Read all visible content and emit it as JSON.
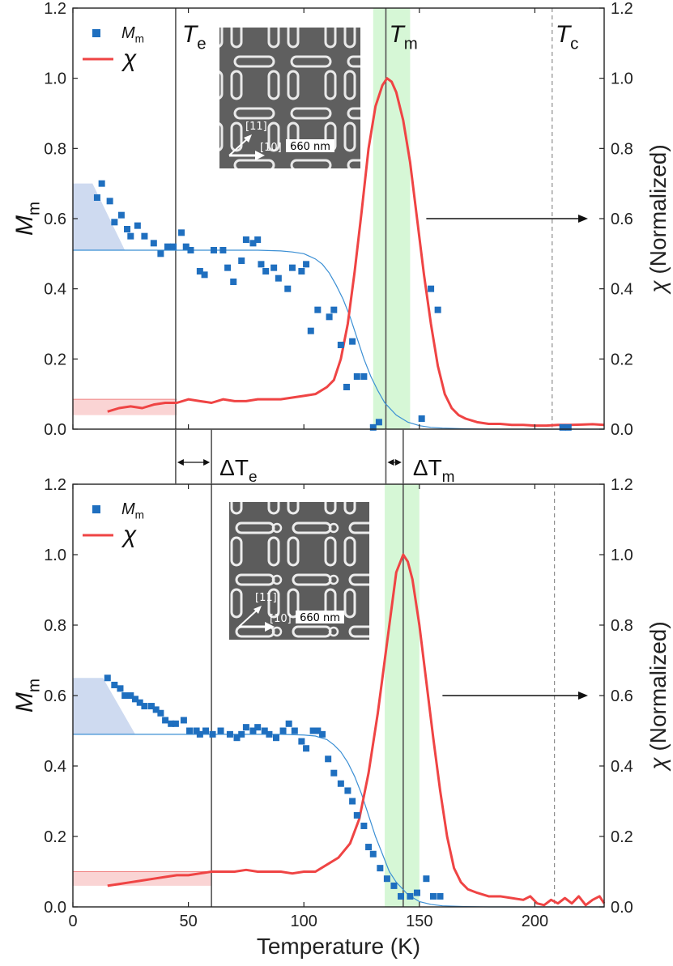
{
  "chart_data": [
    {
      "type": "scatter",
      "panel": "top",
      "xlim": [
        0,
        230
      ],
      "ylim": [
        0,
        1.2
      ],
      "y2lim": [
        0,
        1.2
      ],
      "xticks": [
        0,
        50,
        100,
        150,
        200
      ],
      "yticks": [
        "0.0",
        "0.2",
        "0.4",
        "0.6",
        "0.8",
        "1.0",
        "1.2"
      ],
      "ylabel_main": "M",
      "ylabel_sub": "m",
      "y2label_greek": "χ",
      "y2label_text": "(Normalized)",
      "legend": {
        "marker_label_main": "M",
        "marker_label_sub": "m",
        "line_label": "χ"
      },
      "markers": [
        {
          "main": "T",
          "sub": "e",
          "x": 44.5
        },
        {
          "main": "T",
          "sub": "m",
          "x": 135.5
        },
        {
          "main": "T",
          "sub": "c",
          "x": 207.5
        }
      ],
      "green_band": [
        130,
        146
      ],
      "inset_scale": "660 nm",
      "inset_dir1": "[11]",
      "inset_dir2": "[10]",
      "series": [
        {
          "name": "M_m",
          "kind": "scatter",
          "color": "#1f6fbf",
          "x": [
            10.5,
            12.5,
            16,
            18,
            21,
            23.5,
            25,
            28,
            31,
            35,
            38,
            41,
            43.5,
            47,
            49,
            51,
            55,
            57,
            61,
            65,
            67,
            69.5,
            73,
            75,
            78,
            80,
            81.5,
            83.5,
            87,
            89,
            93,
            95,
            99,
            101,
            103,
            106,
            111,
            113,
            116,
            118.5,
            121,
            123,
            126,
            130,
            132.5,
            151,
            155,
            158,
            212,
            214.5
          ],
          "y": [
            0.66,
            0.7,
            0.65,
            0.59,
            0.61,
            0.57,
            0.55,
            0.58,
            0.55,
            0.53,
            0.5,
            0.52,
            0.52,
            0.56,
            0.52,
            0.51,
            0.45,
            0.44,
            0.51,
            0.51,
            0.46,
            0.42,
            0.48,
            0.54,
            0.53,
            0.54,
            0.47,
            0.45,
            0.46,
            0.43,
            0.4,
            0.46,
            0.45,
            0.47,
            0.28,
            0.34,
            0.32,
            0.34,
            0.24,
            0.12,
            0.25,
            0.15,
            0.15,
            0.005,
            0.02,
            0.03,
            0.4,
            0.34,
            0.005,
            0.005
          ]
        },
        {
          "name": "χ",
          "kind": "line",
          "color": "#ef4444",
          "x": [
            15,
            20,
            25,
            30,
            35,
            40,
            45,
            50,
            55,
            60,
            65,
            70,
            75,
            80,
            85,
            90,
            95,
            100,
            105,
            110,
            113,
            116,
            119,
            122,
            125,
            128,
            131,
            134,
            136,
            138,
            140,
            143,
            146,
            149,
            152,
            155,
            158,
            161,
            164,
            167,
            170,
            175,
            180,
            185,
            190,
            195,
            200,
            205,
            210,
            215,
            220,
            225,
            230
          ],
          "y": [
            0.05,
            0.06,
            0.065,
            0.06,
            0.07,
            0.075,
            0.075,
            0.085,
            0.08,
            0.075,
            0.085,
            0.08,
            0.08,
            0.085,
            0.085,
            0.085,
            0.09,
            0.095,
            0.1,
            0.12,
            0.14,
            0.2,
            0.3,
            0.45,
            0.62,
            0.8,
            0.92,
            0.98,
            1.0,
            0.99,
            0.96,
            0.88,
            0.76,
            0.6,
            0.44,
            0.3,
            0.18,
            0.1,
            0.06,
            0.04,
            0.03,
            0.02,
            0.015,
            0.015,
            0.012,
            0.012,
            0.01,
            0.01,
            0.012,
            0.012,
            0.013,
            0.014,
            0.012
          ]
        },
        {
          "name": "fit",
          "kind": "line",
          "color": "#3b8fd4",
          "x": [
            0,
            10,
            20,
            30,
            40,
            50,
            60,
            70,
            80,
            90,
            95,
            100,
            105,
            108,
            111,
            114,
            117,
            120,
            123,
            126,
            129,
            132,
            135,
            140,
            145,
            150,
            155,
            160,
            170,
            180,
            200,
            230
          ],
          "y": [
            0.51,
            0.51,
            0.51,
            0.51,
            0.51,
            0.51,
            0.51,
            0.51,
            0.51,
            0.508,
            0.505,
            0.5,
            0.485,
            0.47,
            0.445,
            0.41,
            0.37,
            0.32,
            0.26,
            0.2,
            0.15,
            0.11,
            0.075,
            0.04,
            0.02,
            0.01,
            0.005,
            0.003,
            0.001,
            0,
            0,
            0
          ]
        }
      ],
      "shade_blue_top": 0.7,
      "shade_base": 0.51,
      "shade_red_top": 0.085,
      "shade_red_base": 0.04
    },
    {
      "type": "scatter",
      "panel": "bottom",
      "xlim": [
        0,
        230
      ],
      "ylim": [
        0,
        1.2
      ],
      "y2lim": [
        0,
        1.2
      ],
      "xticks": [
        "0",
        "50",
        "100",
        "150",
        "200"
      ],
      "yticks": [
        "0.0",
        "0.2",
        "0.4",
        "0.6",
        "0.8",
        "1.0",
        "1.2"
      ],
      "xlabel": "Temperature (K)",
      "ylabel_main": "M",
      "ylabel_sub": "m",
      "y2label_greek": "χ",
      "y2label_text": "(Normalized)",
      "legend": {
        "marker_label_main": "M",
        "marker_label_sub": "m",
        "line_label": "χ"
      },
      "vlines": [
        60,
        143,
        208.5
      ],
      "green_band": [
        135,
        150
      ],
      "inset_scale": "660 nm",
      "inset_dir1": "[11]",
      "inset_dir2": "[10]",
      "series": [
        {
          "name": "M_m",
          "kind": "scatter",
          "color": "#1f6fbf",
          "x": [
            15,
            18,
            20.5,
            22.5,
            25,
            27,
            29,
            31,
            34,
            36,
            38,
            40,
            42.5,
            44.5,
            48,
            50.5,
            53.5,
            55,
            57.5,
            60.5,
            64,
            68,
            71,
            73,
            75,
            78,
            80,
            83,
            85,
            88,
            91,
            93.5,
            96,
            99,
            101,
            104,
            106,
            108,
            110.5,
            113,
            116,
            119,
            121,
            123,
            126,
            128,
            130,
            133,
            136,
            139,
            142,
            146,
            149,
            153,
            156,
            159
          ],
          "y": [
            0.65,
            0.63,
            0.62,
            0.6,
            0.6,
            0.59,
            0.58,
            0.57,
            0.57,
            0.56,
            0.55,
            0.53,
            0.52,
            0.52,
            0.53,
            0.5,
            0.5,
            0.49,
            0.5,
            0.49,
            0.5,
            0.49,
            0.48,
            0.49,
            0.51,
            0.5,
            0.51,
            0.5,
            0.49,
            0.48,
            0.5,
            0.52,
            0.5,
            0.47,
            0.45,
            0.5,
            0.5,
            0.49,
            0.42,
            0.38,
            0.35,
            0.33,
            0.3,
            0.26,
            0.23,
            0.17,
            0.15,
            0.11,
            0.08,
            0.06,
            0.03,
            0.03,
            0.04,
            0.08,
            0.03,
            0.03
          ]
        },
        {
          "name": "χ",
          "kind": "line",
          "color": "#ef4444",
          "x": [
            15,
            20,
            25,
            30,
            35,
            40,
            45,
            50,
            55,
            60,
            65,
            70,
            75,
            80,
            85,
            90,
            95,
            100,
            105,
            110,
            115,
            120,
            124,
            128,
            132,
            135,
            138,
            140,
            143,
            145,
            147,
            150,
            153,
            156,
            159,
            162,
            165,
            168,
            171,
            175,
            180,
            185,
            190,
            195,
            198,
            201,
            204,
            207,
            210,
            213,
            216,
            219,
            222,
            225,
            228,
            230
          ],
          "y": [
            0.06,
            0.065,
            0.07,
            0.075,
            0.08,
            0.085,
            0.09,
            0.09,
            0.095,
            0.1,
            0.1,
            0.1,
            0.105,
            0.1,
            0.1,
            0.1,
            0.095,
            0.1,
            0.1,
            0.12,
            0.14,
            0.18,
            0.25,
            0.38,
            0.55,
            0.7,
            0.85,
            0.95,
            1.0,
            0.98,
            0.93,
            0.8,
            0.64,
            0.48,
            0.33,
            0.2,
            0.11,
            0.07,
            0.05,
            0.04,
            0.03,
            0.03,
            0.025,
            0.02,
            0.03,
            0.01,
            0.005,
            0.02,
            0.01,
            0.025,
            0.01,
            0.03,
            0.005,
            0.02,
            0.03,
            0.01
          ]
        },
        {
          "name": "fit",
          "kind": "line",
          "color": "#3b8fd4",
          "x": [
            0,
            10,
            20,
            30,
            40,
            50,
            60,
            70,
            80,
            90,
            100,
            105,
            110,
            113,
            116,
            119,
            122,
            125,
            128,
            131,
            134,
            137,
            140,
            145,
            150,
            155,
            160,
            170,
            180,
            200,
            230
          ],
          "y": [
            0.49,
            0.49,
            0.49,
            0.49,
            0.49,
            0.49,
            0.49,
            0.49,
            0.49,
            0.49,
            0.488,
            0.485,
            0.475,
            0.46,
            0.44,
            0.41,
            0.37,
            0.32,
            0.26,
            0.2,
            0.15,
            0.1,
            0.07,
            0.035,
            0.015,
            0.007,
            0.003,
            0.001,
            0,
            0,
            0
          ]
        }
      ],
      "shade_blue_top": 0.65,
      "shade_base": 0.49,
      "shade_red_top": 0.1,
      "shade_red_base": 0.06
    }
  ],
  "between": {
    "delta_te_main": "ΔT",
    "delta_te_sub": "e",
    "delta_tm_main": "ΔT",
    "delta_tm_sub": "m"
  },
  "colors": {
    "marker": "#1f6fbf",
    "chi": "#ef4444",
    "fit": "#3b8fd4",
    "blue_shade": "#c9d6ee",
    "red_shade": "#fad4d4",
    "green_band": "#d6f7d6"
  }
}
